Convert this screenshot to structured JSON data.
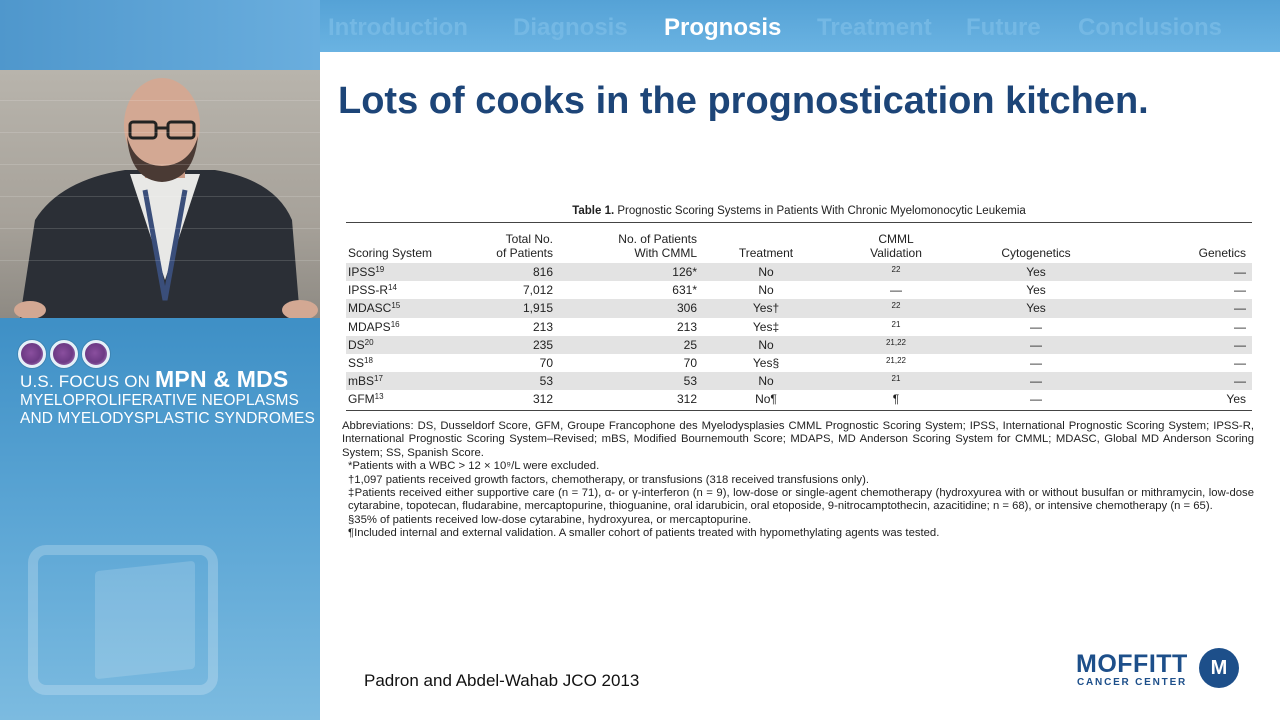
{
  "nav": {
    "items": [
      {
        "label": "Introduction",
        "active": false
      },
      {
        "label": "Diagnosis",
        "active": false
      },
      {
        "label": "Prognosis",
        "active": true
      },
      {
        "label": "Treatment",
        "active": false
      },
      {
        "label": "Future",
        "active": false
      },
      {
        "label": "Conclusions",
        "active": false
      }
    ]
  },
  "branding": {
    "line1_prefix": "U.S. FOCUS ON ",
    "line1_bold": "MPN & MDS",
    "line2": "MYELOPROLIFERATIVE NEOPLASMS",
    "line3": "AND MYELODYSPLASTIC SYNDROMES"
  },
  "slide": {
    "title": "Lots of cooks in the prognostication kitchen.",
    "citation": "Padron and Abdel-Wahab JCO 2013"
  },
  "table": {
    "caption_bold": "Table 1.",
    "caption_text": " Prognostic Scoring Systems in Patients With Chronic Myelomonocytic Leukemia",
    "headers": {
      "system": "Scoring System",
      "total_1": "Total No.",
      "total_2": "of Patients",
      "cmml_1": "No. of Patients",
      "cmml_2": "With CMML",
      "treatment": "Treatment",
      "validation_1": "CMML",
      "validation_2": "Validation",
      "cytogenetics": "Cytogenetics",
      "genetics": "Genetics"
    },
    "rows": [
      {
        "system": "IPSS",
        "ref": "19",
        "total": "816",
        "cmml": "126*",
        "treatment": "No",
        "validation": "22",
        "cytogenetics": "Yes",
        "genetics": "—"
      },
      {
        "system": "IPSS-R",
        "ref": "14",
        "total": "7,012",
        "cmml": "631*",
        "treatment": "No",
        "validation": "—",
        "cytogenetics": "Yes",
        "genetics": "—"
      },
      {
        "system": "MDASC",
        "ref": "15",
        "total": "1,915",
        "cmml": "306",
        "treatment": "Yes†",
        "validation": "22",
        "cytogenetics": "Yes",
        "genetics": "—"
      },
      {
        "system": "MDAPS",
        "ref": "16",
        "total": "213",
        "cmml": "213",
        "treatment": "Yes‡",
        "validation": "21",
        "cytogenetics": "—",
        "genetics": "—"
      },
      {
        "system": "DS",
        "ref": "20",
        "total": "235",
        "cmml": "25",
        "treatment": "No",
        "validation": "21,22",
        "cytogenetics": "—",
        "genetics": "—"
      },
      {
        "system": "SS",
        "ref": "18",
        "total": "70",
        "cmml": "70",
        "treatment": "Yes§",
        "validation": "21,22",
        "cytogenetics": "—",
        "genetics": "—"
      },
      {
        "system": "mBS",
        "ref": "17",
        "total": "53",
        "cmml": "53",
        "treatment": "No",
        "validation": "21",
        "cytogenetics": "—",
        "genetics": "—"
      },
      {
        "system": "GFM",
        "ref": "13",
        "total": "312",
        "cmml": "312",
        "treatment": "No¶",
        "validation": "¶",
        "cytogenetics": "—",
        "genetics": "Yes"
      }
    ]
  },
  "footnotes": {
    "abbreviations": "Abbreviations: DS, Dusseldorf Score, GFM, Groupe Francophone des Myelodysplasies CMML Prognostic Scoring System; IPSS, International Prognostic Scoring System; IPSS-R, International Prognostic Scoring System–Revised; mBS, Modified Bournemouth Score; MDAPS, MD Anderson Scoring System for CMML; MDASC, Global MD Anderson Scoring System; SS, Spanish Score.",
    "star": "*Patients with a WBC > 12 × 10⁹/L were excluded.",
    "dagger": "†1,097 patients received growth factors, chemotherapy, or transfusions (318 received transfusions only).",
    "ddagger": "‡Patients received either supportive care (n = 71), α- or γ-interferon (n = 9), low-dose or single-agent chemotherapy (hydroxyurea with or without busulfan or mithramycin, low-dose cytarabine, topotecan, fludarabine, mercaptopurine, thioguanine, oral idarubicin, oral etoposide, 9-nitrocamptothecin, azacitidine; n = 68), or intensive chemotherapy (n = 65).",
    "section": "§35% of patients received low-dose cytarabine, hydroxyurea, or mercaptopurine.",
    "pilcrow": "¶Included internal and external validation. A smaller cohort of patients treated with hypomethylating agents was tested."
  },
  "logo": {
    "word": "MOFFITT",
    "sub": "CANCER CENTER",
    "mark": "M"
  },
  "colors": {
    "title": "#1d4578",
    "nav_active": "#ffffff",
    "nav_inactive": "#74b8e4",
    "brand_blue": "#1d4f8a"
  }
}
